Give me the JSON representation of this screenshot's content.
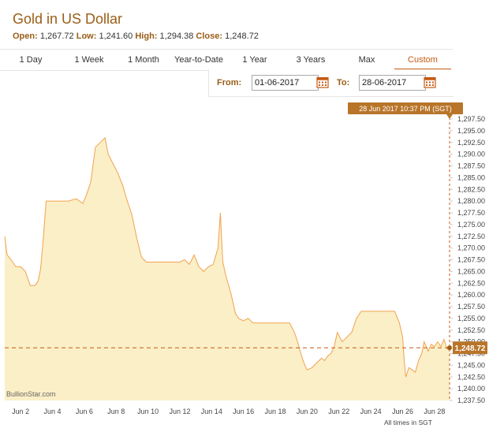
{
  "header": {
    "title": "Gold in US Dollar",
    "open_label": "Open:",
    "open_value": "1,267.72",
    "low_label": "Low:",
    "low_value": "1,241.60",
    "high_label": "High:",
    "high_value": "1,294.38",
    "close_label": "Close:",
    "close_value": "1,248.72"
  },
  "tabs": [
    {
      "label": "1 Day"
    },
    {
      "label": "1 Week"
    },
    {
      "label": "1 Month"
    },
    {
      "label": "Year-to-Date"
    },
    {
      "label": "1 Year"
    },
    {
      "label": "3 Years"
    },
    {
      "label": "Max"
    },
    {
      "label": "Custom",
      "active": true
    }
  ],
  "range": {
    "from_label": "From:",
    "from_value": "01-06-2017",
    "to_label": "To:",
    "to_value": "28-06-2017",
    "calendar_icon": "calendar-icon"
  },
  "tooltip": "28 Jun 2017 10:37 PM (SGT)",
  "last_value": "1,248.72",
  "watermark": "BullionStar.com",
  "timezone_note": "All times in SGT",
  "colors": {
    "accent": "#c45a12",
    "brand": "#9a5d17",
    "fill": "#fbefc7",
    "line": "#f0a24e"
  },
  "chart_data": {
    "type": "area",
    "title": "Gold in US Dollar",
    "xlabel": "",
    "ylabel": "",
    "x_tick_labels": [
      "Jun 2",
      "Jun 4",
      "Jun 6",
      "Jun 8",
      "Jun 10",
      "Jun 12",
      "Jun 14",
      "Jun 16",
      "Jun 18",
      "Jun 20",
      "Jun 22",
      "Jun 24",
      "Jun 26",
      "Jun 28"
    ],
    "x_tick_days": [
      2,
      4,
      6,
      8,
      10,
      12,
      14,
      16,
      18,
      20,
      22,
      24,
      26,
      28
    ],
    "xlim_days": [
      1.0,
      28.95
    ],
    "y_tick_labels": [
      "1,237.50",
      "1,240.00",
      "1,242.50",
      "1,245.00",
      "1,247.50",
      "1,250.00",
      "1,252.50",
      "1,255.00",
      "1,257.50",
      "1,260.00",
      "1,262.50",
      "1,265.00",
      "1,267.50",
      "1,270.00",
      "1,272.50",
      "1,275.00",
      "1,277.50",
      "1,280.00",
      "1,282.50",
      "1,285.00",
      "1,287.50",
      "1,290.00",
      "1,292.50",
      "1,295.00",
      "1,297.50"
    ],
    "ylim": [
      1237.5,
      1297.5
    ],
    "grid": false,
    "reference_line": 1248.72,
    "points": [
      [
        1.0,
        1272.5
      ],
      [
        1.15,
        1268.5
      ],
      [
        1.4,
        1267.5
      ],
      [
        1.7,
        1266.0
      ],
      [
        2.0,
        1266.0
      ],
      [
        2.3,
        1265.0
      ],
      [
        2.6,
        1262.0
      ],
      [
        2.9,
        1262.0
      ],
      [
        3.1,
        1263.0
      ],
      [
        3.25,
        1265.5
      ],
      [
        3.4,
        1271.0
      ],
      [
        3.6,
        1280.0
      ],
      [
        4.0,
        1280.0
      ],
      [
        5.0,
        1280.0
      ],
      [
        5.5,
        1280.5
      ],
      [
        5.9,
        1279.5
      ],
      [
        6.1,
        1281.0
      ],
      [
        6.4,
        1284.0
      ],
      [
        6.7,
        1291.5
      ],
      [
        7.0,
        1292.5
      ],
      [
        7.3,
        1293.5
      ],
      [
        7.5,
        1290.0
      ],
      [
        7.8,
        1288.0
      ],
      [
        8.1,
        1286.0
      ],
      [
        8.4,
        1283.5
      ],
      [
        8.7,
        1280.0
      ],
      [
        9.0,
        1277.0
      ],
      [
        9.3,
        1272.0
      ],
      [
        9.6,
        1268.0
      ],
      [
        9.9,
        1267.0
      ],
      [
        10.5,
        1267.0
      ],
      [
        11.0,
        1267.0
      ],
      [
        11.5,
        1267.0
      ],
      [
        12.0,
        1267.0
      ],
      [
        12.3,
        1267.5
      ],
      [
        12.6,
        1266.5
      ],
      [
        12.9,
        1268.5
      ],
      [
        13.2,
        1266.0
      ],
      [
        13.5,
        1265.0
      ],
      [
        13.8,
        1266.0
      ],
      [
        14.1,
        1266.5
      ],
      [
        14.4,
        1270.0
      ],
      [
        14.55,
        1277.5
      ],
      [
        14.7,
        1267.0
      ],
      [
        14.9,
        1264.0
      ],
      [
        15.2,
        1260.5
      ],
      [
        15.5,
        1256.0
      ],
      [
        15.7,
        1255.0
      ],
      [
        16.0,
        1254.5
      ],
      [
        16.3,
        1255.0
      ],
      [
        16.6,
        1254.0
      ],
      [
        17.0,
        1254.0
      ],
      [
        18.0,
        1254.0
      ],
      [
        18.9,
        1254.0
      ],
      [
        19.2,
        1252.0
      ],
      [
        19.4,
        1250.0
      ],
      [
        19.6,
        1247.5
      ],
      [
        19.8,
        1245.5
      ],
      [
        20.0,
        1244.0
      ],
      [
        20.3,
        1244.5
      ],
      [
        20.6,
        1245.5
      ],
      [
        20.9,
        1246.5
      ],
      [
        21.1,
        1246.0
      ],
      [
        21.3,
        1247.0
      ],
      [
        21.5,
        1247.5
      ],
      [
        21.7,
        1249.0
      ],
      [
        21.9,
        1252.0
      ],
      [
        22.2,
        1250.0
      ],
      [
        22.5,
        1251.0
      ],
      [
        22.8,
        1252.0
      ],
      [
        23.1,
        1255.0
      ],
      [
        23.4,
        1256.5
      ],
      [
        24.0,
        1256.5
      ],
      [
        25.0,
        1256.5
      ],
      [
        25.5,
        1256.5
      ],
      [
        25.8,
        1254.0
      ],
      [
        26.0,
        1251.0
      ],
      [
        26.1,
        1246.0
      ],
      [
        26.2,
        1242.5
      ],
      [
        26.4,
        1244.5
      ],
      [
        26.6,
        1244.0
      ],
      [
        26.8,
        1243.5
      ],
      [
        27.0,
        1246.0
      ],
      [
        27.2,
        1247.5
      ],
      [
        27.35,
        1250.0
      ],
      [
        27.6,
        1248.0
      ],
      [
        27.8,
        1249.5
      ],
      [
        28.0,
        1249.0
      ],
      [
        28.2,
        1250.0
      ],
      [
        28.4,
        1249.0
      ],
      [
        28.6,
        1250.5
      ],
      [
        28.8,
        1248.5
      ],
      [
        28.95,
        1248.72
      ]
    ]
  }
}
